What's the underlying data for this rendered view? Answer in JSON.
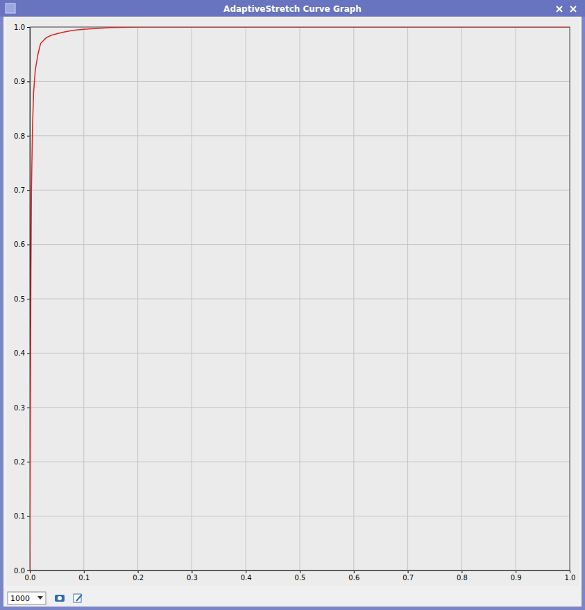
{
  "chart_data": {
    "type": "line",
    "title": "AdaptiveStretch Curve Graph",
    "x": [
      0,
      0.001,
      0.002,
      0.003,
      0.005,
      0.007,
      0.01,
      0.015,
      0.02,
      0.03,
      0.04,
      0.06,
      0.08,
      0.1,
      0.15,
      0.2,
      0.3,
      0.5,
      0.7,
      1.0
    ],
    "values": [
      0,
      0.3,
      0.55,
      0.7,
      0.82,
      0.88,
      0.92,
      0.95,
      0.97,
      0.98,
      0.985,
      0.99,
      0.994,
      0.996,
      0.999,
      1,
      1,
      1,
      1,
      1
    ],
    "color": "#e02020",
    "xlim": [
      0,
      1
    ],
    "ylim": [
      0,
      1
    ],
    "xticks": [
      {
        "value": 0,
        "label": "0.0"
      },
      0.1,
      0.2,
      0.3,
      0.4,
      0.5,
      0.6,
      0.7,
      0.8,
      0.9,
      {
        "value": 1,
        "label": "1.0"
      }
    ],
    "yticks": [
      {
        "value": 0,
        "label": "0.0"
      },
      0.1,
      0.2,
      0.3,
      0.4,
      0.5,
      0.6,
      0.7,
      0.8,
      0.9,
      {
        "value": 1,
        "label": "1.0"
      }
    ],
    "grid": true,
    "annotations": [
      "1000"
    ]
  }
}
